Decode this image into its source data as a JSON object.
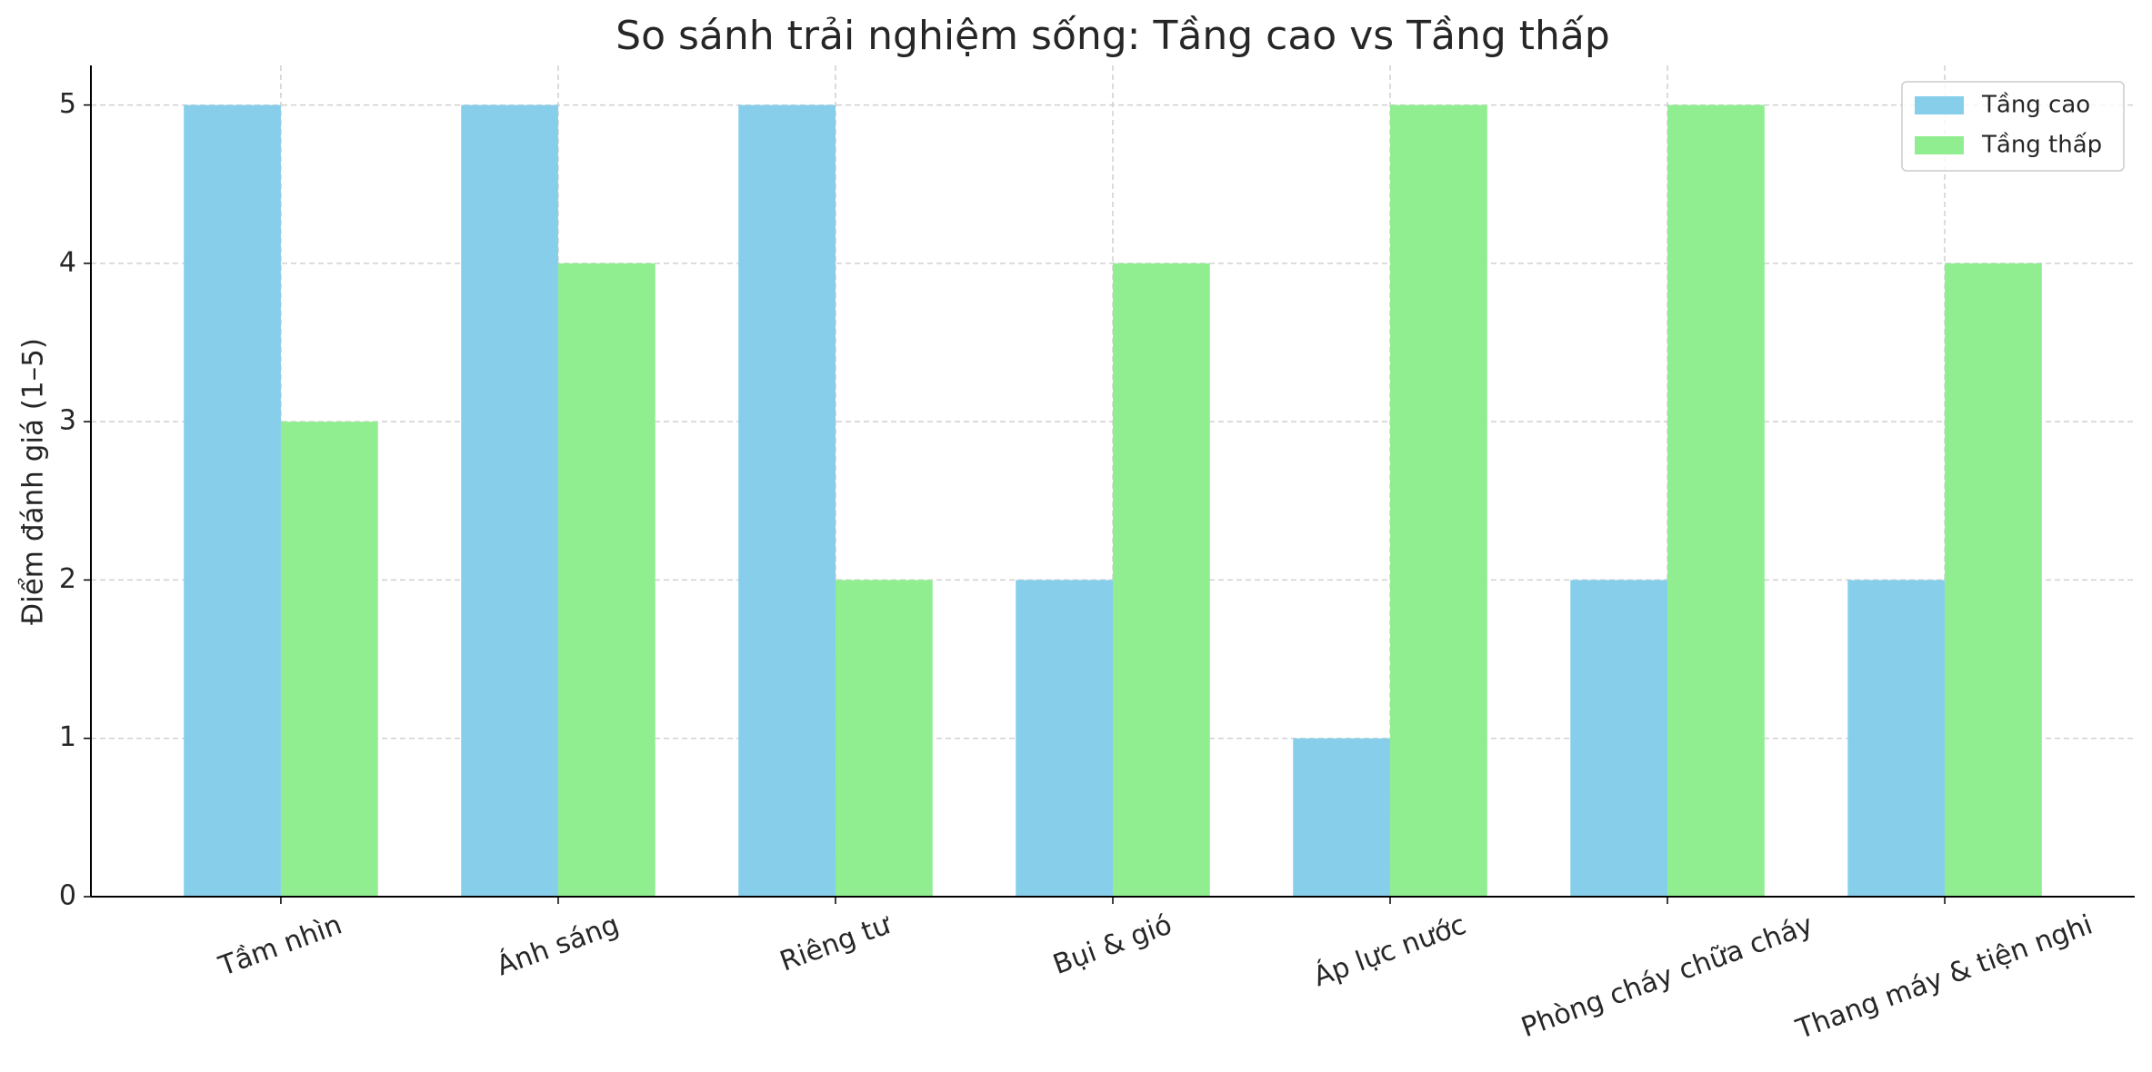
{
  "chart_data": {
    "type": "bar",
    "title": "So sánh trải nghiệm sống: Tầng cao vs Tầng thấp",
    "ylabel": "Điểm đánh giá (1–5)",
    "categories": [
      "Tầm nhìn",
      "Ánh sáng",
      "Riêng tư",
      "Bụi & gió",
      "Áp lực nước",
      "Phòng cháy chữa cháy",
      "Thang máy & tiện nghi"
    ],
    "series": [
      {
        "name": "Tầng cao",
        "color": "#87ceeb",
        "values": [
          5,
          5,
          5,
          2,
          1,
          2,
          2
        ]
      },
      {
        "name": "Tầng thấp",
        "color": "#90ee90",
        "values": [
          3,
          4,
          2,
          4,
          5,
          5,
          4
        ]
      }
    ],
    "ylim": [
      0,
      5.25
    ],
    "yticks": [
      0,
      1,
      2,
      3,
      4,
      5
    ],
    "grid": true,
    "legend": "upper right"
  }
}
